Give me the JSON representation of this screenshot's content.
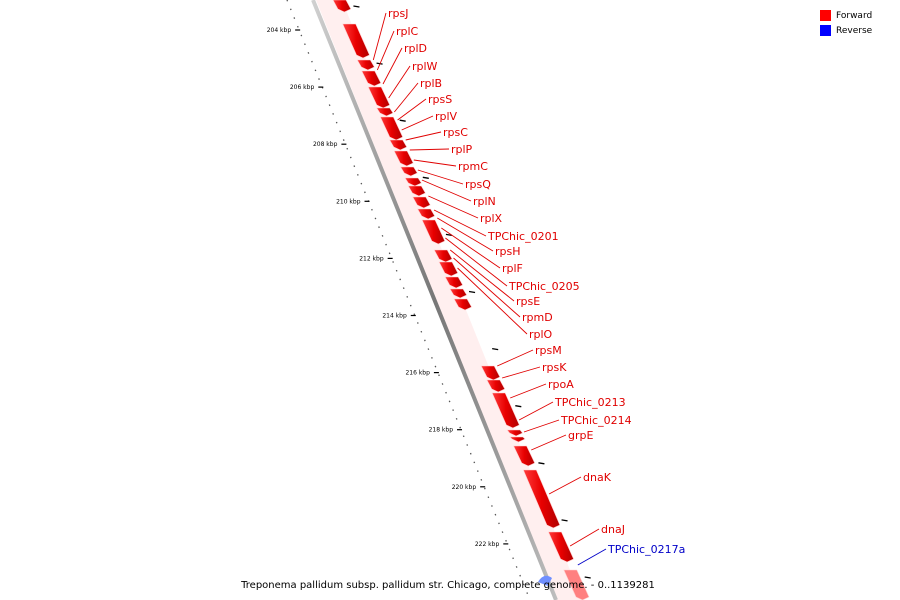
{
  "legend": {
    "forward": {
      "label": "Forward",
      "color": "#ff0000"
    },
    "reverse": {
      "label": "Reverse",
      "color": "#0000ff"
    }
  },
  "footer": "Treponema pallidum subsp. pallidum str. Chicago, complete genome. - 0..1139281",
  "ticks": [
    "204 kbp",
    "206 kbp",
    "208 kbp",
    "210 kbp",
    "212 kbp",
    "214 kbp",
    "216 kbp",
    "218 kbp",
    "220 kbp",
    "222 kbp"
  ],
  "genes": [
    {
      "name": "rpsJ",
      "strand": "forward"
    },
    {
      "name": "rplC",
      "strand": "forward"
    },
    {
      "name": "rplD",
      "strand": "forward"
    },
    {
      "name": "rplW",
      "strand": "forward"
    },
    {
      "name": "rplB",
      "strand": "forward"
    },
    {
      "name": "rpsS",
      "strand": "forward"
    },
    {
      "name": "rplV",
      "strand": "forward"
    },
    {
      "name": "rpsC",
      "strand": "forward"
    },
    {
      "name": "rplP",
      "strand": "forward"
    },
    {
      "name": "rpmC",
      "strand": "forward"
    },
    {
      "name": "rpsQ",
      "strand": "forward"
    },
    {
      "name": "rplN",
      "strand": "forward"
    },
    {
      "name": "rplX",
      "strand": "forward"
    },
    {
      "name": "TPChic_0201",
      "strand": "forward"
    },
    {
      "name": "rpsH",
      "strand": "forward"
    },
    {
      "name": "rplF",
      "strand": "forward"
    },
    {
      "name": "TPChic_0205",
      "strand": "forward"
    },
    {
      "name": "rpsE",
      "strand": "forward"
    },
    {
      "name": "rpmD",
      "strand": "forward"
    },
    {
      "name": "rplO",
      "strand": "forward"
    },
    {
      "name": "rpsM",
      "strand": "forward"
    },
    {
      "name": "rpsK",
      "strand": "forward"
    },
    {
      "name": "rpoA",
      "strand": "forward"
    },
    {
      "name": "TPChic_0213",
      "strand": "forward"
    },
    {
      "name": "TPChic_0214",
      "strand": "forward"
    },
    {
      "name": "grpE",
      "strand": "forward"
    },
    {
      "name": "dnaK",
      "strand": "forward"
    },
    {
      "name": "dnaJ",
      "strand": "forward"
    },
    {
      "name": "TPChic_0217a",
      "strand": "reverse"
    }
  ]
}
